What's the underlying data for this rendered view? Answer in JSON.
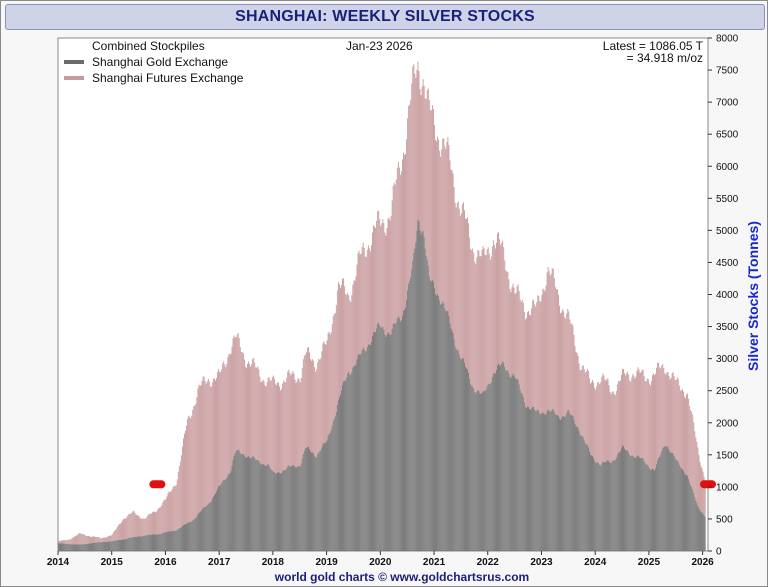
{
  "title": "SHANGHAI: WEEKLY SILVER STOCKS",
  "legend": {
    "header": "Combined Stockpiles",
    "items": [
      {
        "label": "Shanghai Gold Exchange",
        "color": "#6b6b6b"
      },
      {
        "label": "Shanghai Futures Exchange",
        "color": "#c79a9c"
      }
    ]
  },
  "date_text": "Jan-23  2026",
  "latest_line1": "Latest = 1086.05 T",
  "latest_line2": "= 34.918 m/oz",
  "footer": "world gold charts © www.goldchartsrus.com",
  "colors": {
    "sge": "#707070",
    "shfe": "#c79a9c",
    "marker": "#e01010",
    "ylabel": "#1a24d0",
    "title": "#1a1f7a"
  },
  "chart_data": {
    "type": "area",
    "x_unit": "year",
    "xlim": [
      2014,
      2026.1
    ],
    "ylim": [
      0,
      8000
    ],
    "ylabel": "Silver Stocks (Tonnes)",
    "x_ticks": [
      "2014",
      "2015",
      "2016",
      "2017",
      "2018",
      "2019",
      "2020",
      "2021",
      "2022",
      "2023",
      "2024",
      "2025",
      "2026"
    ],
    "y_ticks": [
      "0",
      "500",
      "1000",
      "1500",
      "2000",
      "2500",
      "3000",
      "3500",
      "4000",
      "4500",
      "5000",
      "5500",
      "6000",
      "6500",
      "7000",
      "7500",
      "8000"
    ],
    "series": [
      {
        "name": "Shanghai Gold Exchange",
        "points": [
          [
            2014.0,
            120
          ],
          [
            2014.4,
            100
          ],
          [
            2014.8,
            140
          ],
          [
            2015.0,
            150
          ],
          [
            2015.5,
            230
          ],
          [
            2015.9,
            270
          ],
          [
            2016.2,
            330
          ],
          [
            2016.5,
            480
          ],
          [
            2016.8,
            750
          ],
          [
            2017.0,
            1000
          ],
          [
            2017.2,
            1250
          ],
          [
            2017.3,
            1550
          ],
          [
            2017.5,
            1500
          ],
          [
            2017.7,
            1400
          ],
          [
            2017.9,
            1350
          ],
          [
            2018.0,
            1200
          ],
          [
            2018.3,
            1300
          ],
          [
            2018.5,
            1350
          ],
          [
            2018.6,
            1600
          ],
          [
            2018.8,
            1500
          ],
          [
            2019.0,
            1700
          ],
          [
            2019.2,
            2300
          ],
          [
            2019.4,
            2800
          ],
          [
            2019.6,
            3000
          ],
          [
            2019.8,
            3300
          ],
          [
            2020.0,
            3500
          ],
          [
            2020.2,
            3400
          ],
          [
            2020.4,
            3700
          ],
          [
            2020.6,
            4400
          ],
          [
            2020.7,
            5200
          ],
          [
            2020.8,
            5000
          ],
          [
            2020.9,
            4200
          ],
          [
            2021.1,
            4000
          ],
          [
            2021.3,
            3500
          ],
          [
            2021.5,
            3000
          ],
          [
            2021.7,
            2600
          ],
          [
            2021.9,
            2400
          ],
          [
            2022.1,
            2800
          ],
          [
            2022.3,
            2900
          ],
          [
            2022.5,
            2700
          ],
          [
            2022.7,
            2300
          ],
          [
            2022.9,
            2150
          ],
          [
            2023.1,
            2200
          ],
          [
            2023.3,
            2100
          ],
          [
            2023.5,
            2150
          ],
          [
            2023.7,
            1900
          ],
          [
            2023.9,
            1500
          ],
          [
            2024.1,
            1350
          ],
          [
            2024.3,
            1400
          ],
          [
            2024.5,
            1600
          ],
          [
            2024.7,
            1500
          ],
          [
            2024.9,
            1400
          ],
          [
            2025.1,
            1250
          ],
          [
            2025.3,
            1700
          ],
          [
            2025.5,
            1400
          ],
          [
            2025.7,
            1200
          ],
          [
            2025.9,
            700
          ],
          [
            2026.05,
            530
          ]
        ]
      },
      {
        "name": "Shanghai Futures Exchange",
        "points": [
          [
            2014.0,
            150
          ],
          [
            2014.2,
            180
          ],
          [
            2014.4,
            270
          ],
          [
            2014.6,
            230
          ],
          [
            2014.8,
            200
          ],
          [
            2015.0,
            250
          ],
          [
            2015.2,
            500
          ],
          [
            2015.4,
            600
          ],
          [
            2015.6,
            500
          ],
          [
            2015.8,
            620
          ],
          [
            2016.0,
            800
          ],
          [
            2016.2,
            1100
          ],
          [
            2016.4,
            2000
          ],
          [
            2016.6,
            2500
          ],
          [
            2016.8,
            2700
          ],
          [
            2017.0,
            2700
          ],
          [
            2017.2,
            3200
          ],
          [
            2017.3,
            3300
          ],
          [
            2017.5,
            3000
          ],
          [
            2017.7,
            2800
          ],
          [
            2017.9,
            2650
          ],
          [
            2018.0,
            2600
          ],
          [
            2018.3,
            2700
          ],
          [
            2018.5,
            2750
          ],
          [
            2018.6,
            3050
          ],
          [
            2018.8,
            2950
          ],
          [
            2019.0,
            3200
          ],
          [
            2019.2,
            4100
          ],
          [
            2019.4,
            4000
          ],
          [
            2019.6,
            4500
          ],
          [
            2019.8,
            4900
          ],
          [
            2020.0,
            5100
          ],
          [
            2020.2,
            5300
          ],
          [
            2020.4,
            6200
          ],
          [
            2020.6,
            7200
          ],
          [
            2020.7,
            7600
          ],
          [
            2020.8,
            7400
          ],
          [
            2020.9,
            6800
          ],
          [
            2021.1,
            6500
          ],
          [
            2021.3,
            6000
          ],
          [
            2021.5,
            5300
          ],
          [
            2021.7,
            4800
          ],
          [
            2021.9,
            4500
          ],
          [
            2022.1,
            4900
          ],
          [
            2022.3,
            4600
          ],
          [
            2022.5,
            4000
          ],
          [
            2022.7,
            3800
          ],
          [
            2022.9,
            3750
          ],
          [
            2023.1,
            4400
          ],
          [
            2023.3,
            4000
          ],
          [
            2023.5,
            3600
          ],
          [
            2023.7,
            3000
          ],
          [
            2023.9,
            2600
          ],
          [
            2024.1,
            2700
          ],
          [
            2024.3,
            2500
          ],
          [
            2024.5,
            2700
          ],
          [
            2024.7,
            2800
          ],
          [
            2024.9,
            2700
          ],
          [
            2025.1,
            2750
          ],
          [
            2025.3,
            2900
          ],
          [
            2025.5,
            2600
          ],
          [
            2025.7,
            2500
          ],
          [
            2025.9,
            1600
          ],
          [
            2026.05,
            1086
          ]
        ]
      }
    ],
    "markers": [
      [
        2015.85,
        1040
      ],
      [
        2026.1,
        1040
      ]
    ]
  }
}
